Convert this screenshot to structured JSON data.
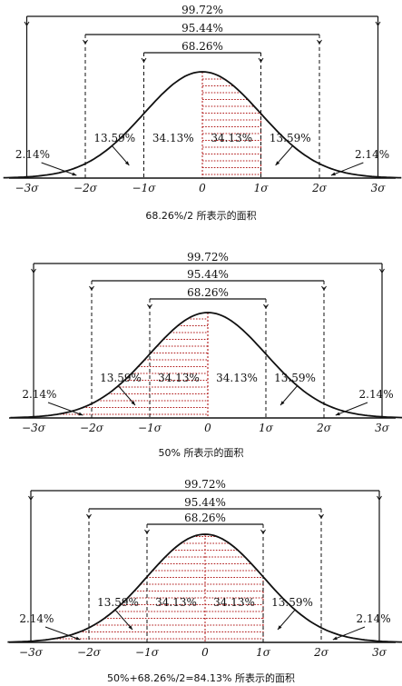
{
  "panels": [
    {
      "caption": "68.26%/2  所表示的面积",
      "shade": "right-half",
      "bands": [
        "99.72%",
        "95.44%",
        "68.26%"
      ],
      "region_labels": {
        "far_left": "2.14%",
        "left_mid": "13.59%",
        "left_core": "34.13%",
        "right_core": "34.13%",
        "right_mid": "13.59%",
        "far_right": "2.14%"
      },
      "axis_ticks": [
        "−3σ",
        "−2σ",
        "−1σ",
        "0",
        "1σ",
        "2σ",
        "3σ"
      ]
    },
    {
      "caption": "50% 所表示的面积",
      "shade": "left-half",
      "bands": [
        "99.72%",
        "95.44%",
        "68.26%"
      ],
      "region_labels": {
        "far_left": "2.14%",
        "left_mid": "13.59%",
        "left_core": "34.13%",
        "right_core": "34.13%",
        "right_mid": "13.59%",
        "far_right": "2.14%"
      },
      "axis_ticks": [
        "−3σ",
        "−2σ",
        "−1σ",
        "0",
        "1σ",
        "2σ",
        "3σ"
      ]
    },
    {
      "caption": "50%+68.26%/2=84.13%  所表示的面积",
      "shade": "left-plus-right-core",
      "bands": [
        "99.72%",
        "95.44%",
        "68.26%"
      ],
      "region_labels": {
        "far_left": "2.14%",
        "left_mid": "13.59%",
        "left_core": "34.13%",
        "right_core": "34.13%",
        "right_mid": "13.59%",
        "far_right": "2.14%"
      },
      "axis_ticks": [
        "−3σ",
        "−2σ",
        "−1σ",
        "0",
        "1σ",
        "2σ",
        "3σ"
      ]
    }
  ],
  "colors": {
    "ink": "#111111",
    "shade": "#b01818",
    "background": "#ffffff"
  }
}
